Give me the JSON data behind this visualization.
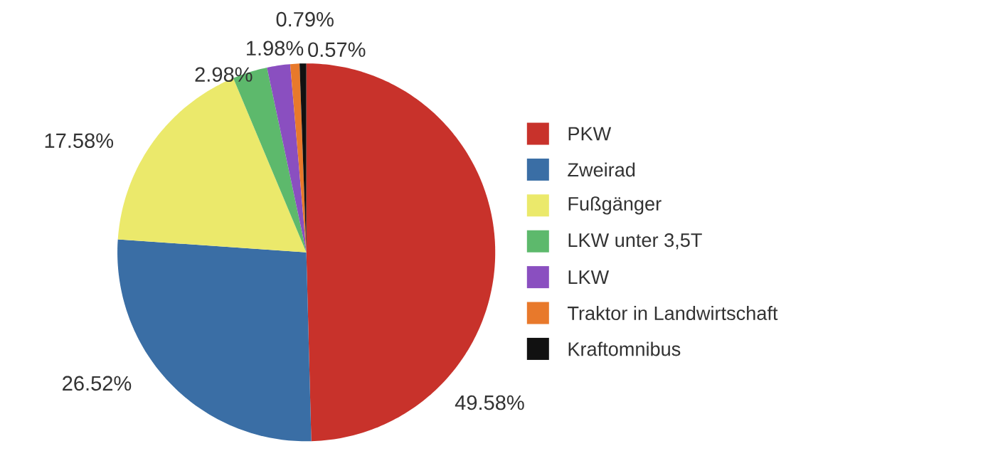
{
  "chart_data": {
    "type": "pie",
    "categories": [
      "PKW",
      "Zweirad",
      "Fußgänger",
      "LKW unter 3,5T",
      "LKW",
      "Traktor in Landwirtschaft",
      "Kraftomnibus"
    ],
    "values": [
      49.58,
      26.52,
      17.58,
      2.98,
      1.98,
      0.79,
      0.57
    ],
    "value_labels": [
      "49.58%",
      "26.52%",
      "17.58%",
      "2.98%",
      "1.98%",
      "0.79%",
      "0.57%"
    ],
    "colors": [
      "#c8322b",
      "#3a6ea5",
      "#ebe96b",
      "#5db96c",
      "#8a4fc0",
      "#e8792b",
      "#111111"
    ],
    "legend": "right"
  }
}
